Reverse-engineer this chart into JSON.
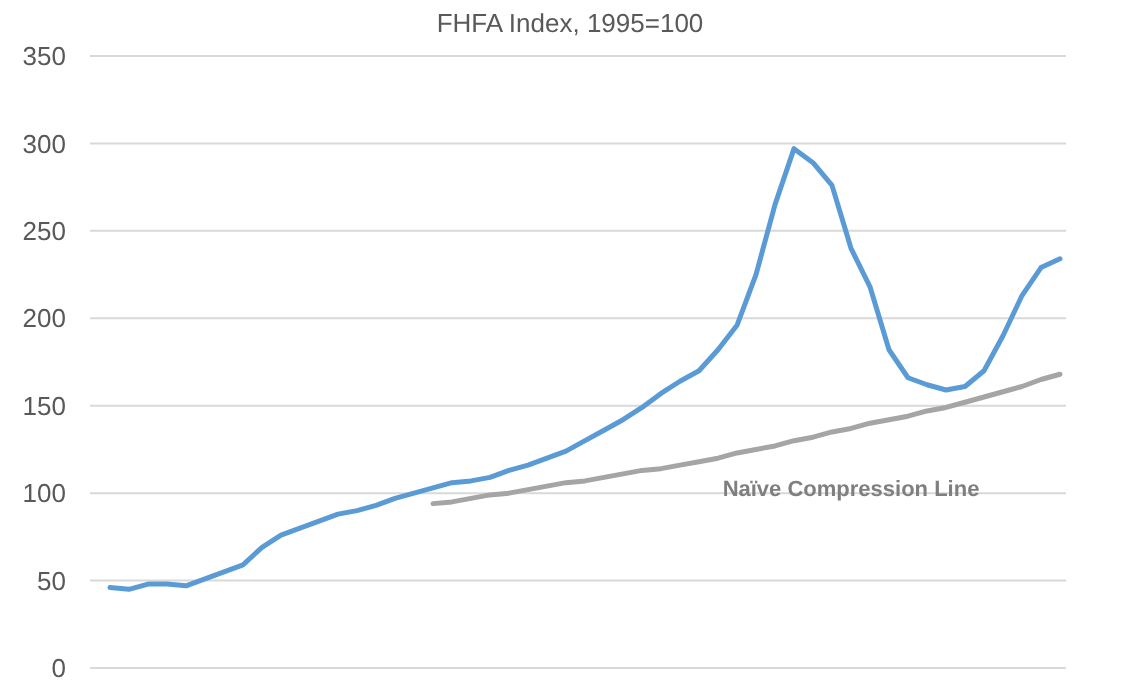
{
  "chart_data": {
    "type": "line",
    "title": "FHFA Index, 1995=100",
    "categories": [
      null,
      null,
      null,
      null,
      null,
      null,
      null,
      null,
      null,
      null,
      null,
      null,
      null,
      null,
      null,
      null,
      null,
      null,
      null,
      null,
      null,
      null,
      null,
      null,
      null,
      null,
      null,
      null,
      null,
      null,
      null,
      null,
      null,
      null,
      null,
      null,
      null,
      null,
      null,
      null,
      null,
      null,
      null,
      null,
      null,
      null,
      null,
      null,
      null,
      null,
      null
    ],
    "series": [
      {
        "color": "#5b9bd5",
        "values": [
          46,
          45,
          48,
          48,
          47,
          51,
          55,
          59,
          69,
          76,
          80,
          84,
          88,
          90,
          93,
          97,
          100,
          103,
          106,
          107,
          109,
          113,
          116,
          120,
          124,
          130,
          136,
          142,
          149,
          157,
          164,
          170,
          182,
          196,
          225,
          265,
          297,
          289,
          276,
          240,
          218,
          182,
          166,
          162,
          159,
          161,
          170,
          190,
          213,
          229,
          234
        ]
      },
      {
        "color": "#a5a5a5",
        "values": [
          null,
          null,
          null,
          null,
          null,
          null,
          null,
          null,
          null,
          null,
          null,
          null,
          null,
          null,
          null,
          null,
          null,
          94,
          95,
          97,
          99,
          100,
          102,
          104,
          106,
          107,
          109,
          111,
          113,
          114,
          116,
          118,
          120,
          123,
          125,
          127,
          130,
          132,
          135,
          137,
          140,
          142,
          144,
          147,
          149,
          152,
          155,
          158,
          161,
          165,
          168
        ]
      }
    ],
    "annotations": [
      "Naïve Compression Line"
    ],
    "ylim": [
      0,
      350
    ],
    "yticks": [
      0,
      50,
      100,
      150,
      200,
      250,
      300,
      350
    ],
    "grid": "y",
    "tick_labels": "y",
    "marker": "none",
    "line_style": "solid"
  }
}
